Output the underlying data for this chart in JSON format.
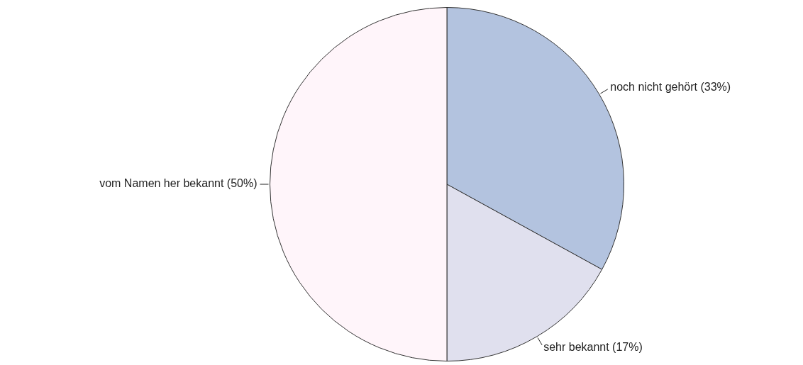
{
  "chart_data": {
    "type": "pie",
    "categories": [
      "noch nicht gehört (33%)",
      "sehr bekannt (17%)",
      "vom Namen her bekannt (50%)"
    ],
    "values": [
      33,
      17,
      50
    ],
    "colors": [
      "#b3c3df",
      "#e0e0ee",
      "#fff5fa"
    ],
    "legend": false
  }
}
